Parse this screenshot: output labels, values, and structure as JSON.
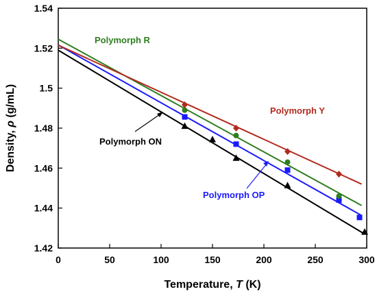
{
  "chart_data": {
    "type": "scatter",
    "xlabel_text": "Temperature, ",
    "xlabel_var": "T",
    "xlabel_unit": " (K)",
    "ylabel_text": "Density, ",
    "ylabel_var": "ρ",
    "ylabel_unit": " (g/mL)",
    "xlim": [
      0,
      300
    ],
    "ylim": [
      1.42,
      1.54
    ],
    "xticks": [
      "0",
      "50",
      "100",
      "150",
      "200",
      "250",
      "300"
    ],
    "yticks": [
      "1.42",
      "1.44",
      "1.46",
      "1.48",
      "1.5",
      "1.52",
      "1.54"
    ],
    "grid": false,
    "series": [
      {
        "name": "Polymorph R",
        "color": "#2e7d1f",
        "marker": "circle",
        "x": [
          123,
          173,
          223,
          273
        ],
        "y": [
          1.489,
          1.4763,
          1.463,
          1.446
        ],
        "fit": [
          [
            0,
            1.5245
          ],
          [
            295,
            1.4413
          ]
        ]
      },
      {
        "name": "Polymorph Y",
        "color": "#b22a1e",
        "marker": "diamond",
        "x": [
          123,
          173,
          223,
          273
        ],
        "y": [
          1.4917,
          1.48,
          1.4683,
          1.457
        ],
        "fit": [
          [
            0,
            1.5215
          ],
          [
            295,
            1.452
          ]
        ]
      },
      {
        "name": "Polymorph OP",
        "color": "#1a1aff",
        "marker": "square",
        "x": [
          123,
          173,
          223,
          273,
          293
        ],
        "y": [
          1.4856,
          1.472,
          1.459,
          1.444,
          1.4353
        ],
        "fit": [
          [
            0,
            1.5216
          ],
          [
            295,
            1.4363
          ]
        ]
      },
      {
        "name": "Polymorph ON",
        "color": "#000000",
        "marker": "triangle",
        "x": [
          123,
          150,
          173,
          223,
          298
        ],
        "y": [
          1.481,
          1.4743,
          1.465,
          1.4513,
          1.428
        ],
        "fit": [
          [
            0,
            1.519
          ],
          [
            298,
            1.427
          ]
        ]
      }
    ],
    "annotations": [
      {
        "text": "Polymorph R",
        "series": 0
      },
      {
        "text": "Polymorph Y",
        "series": 1
      },
      {
        "text": "Polymorph OP",
        "series": 2
      },
      {
        "text": "Polymorph ON",
        "series": 3
      }
    ]
  }
}
